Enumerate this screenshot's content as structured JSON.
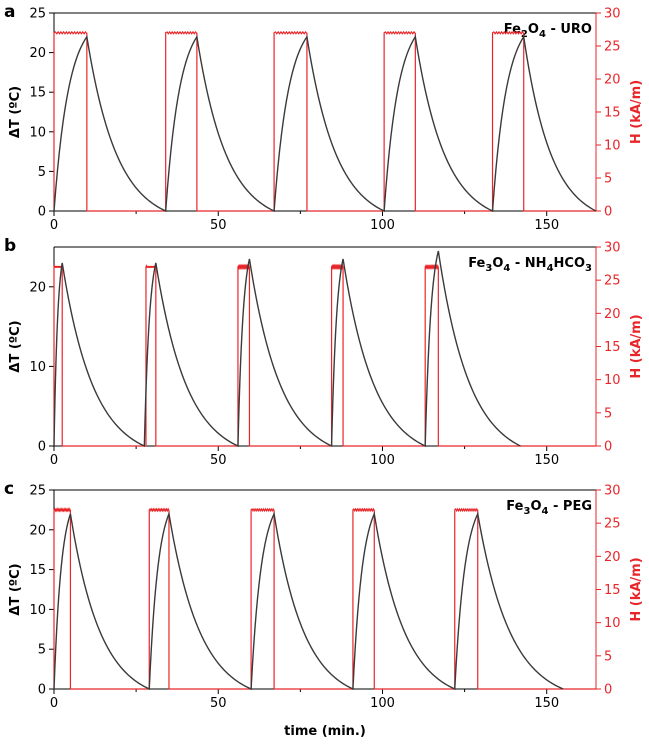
{
  "chart_data": [
    {
      "panel_label": "a",
      "type": "line",
      "annotation": {
        "pre": "Fe",
        "sub1": "2",
        "mid": "O",
        "sub2": "4",
        "post": " - URO"
      },
      "xlabel": "",
      "ylabel_left": "ΔT (ºC)",
      "ylabel_right": "H (kA/m)",
      "xlim": [
        0,
        165
      ],
      "ylim_left": [
        0,
        25
      ],
      "ylim_right": [
        0,
        30
      ],
      "x_ticks": [
        0,
        50,
        100,
        150
      ],
      "y_ticks_left": [
        0,
        5,
        10,
        15,
        20,
        25
      ],
      "y_ticks_right": [
        0,
        5,
        10,
        15,
        20,
        25,
        30
      ],
      "field_on_value": 27,
      "series": [
        {
          "name": "ΔT",
          "axis": "left",
          "cycles": [
            {
              "on": 0,
              "peak_t": 10,
              "peak": 22,
              "end": 34
            },
            {
              "on": 34,
              "peak_t": 43.5,
              "peak": 22,
              "end": 67
            },
            {
              "on": 67,
              "peak_t": 77,
              "peak": 22,
              "end": 100.5
            },
            {
              "on": 100.5,
              "peak_t": 110,
              "peak": 22,
              "end": 133.5
            },
            {
              "on": 133.5,
              "peak_t": 143,
              "peak": 22,
              "end": 165
            }
          ]
        },
        {
          "name": "H",
          "axis": "right",
          "pulses": [
            [
              0,
              10
            ],
            [
              34,
              43.5
            ],
            [
              67,
              77
            ],
            [
              100.5,
              110
            ],
            [
              133.5,
              143
            ]
          ]
        }
      ]
    },
    {
      "panel_label": "b",
      "type": "line",
      "annotation": {
        "pre": "Fe",
        "sub1": "3",
        "mid": "O",
        "sub2": "4",
        "post": " - NH",
        "sub3": "4",
        "post2": "HCO",
        "sub4": "3"
      },
      "xlabel": "",
      "ylabel_left": "ΔT (ºC)",
      "ylabel_right": "H (kA/m)",
      "xlim": [
        0,
        165
      ],
      "ylim_left": [
        0,
        25
      ],
      "ylim_right": [
        0,
        30
      ],
      "x_ticks": [
        0,
        50,
        100,
        150
      ],
      "y_ticks_left": [
        0,
        10,
        20
      ],
      "y_ticks_right": [
        0,
        5,
        10,
        15,
        20,
        25,
        30
      ],
      "field_on_value": 27,
      "series": [
        {
          "name": "ΔT",
          "axis": "left",
          "cycles": [
            {
              "on": 0,
              "peak_t": 2.5,
              "peak": 23,
              "end": 27.5
            },
            {
              "on": 27.5,
              "peak_t": 31,
              "peak": 23,
              "end": 56
            },
            {
              "on": 56,
              "peak_t": 59.5,
              "peak": 23.5,
              "end": 84.5
            },
            {
              "on": 84.5,
              "peak_t": 88,
              "peak": 23.5,
              "end": 113
            },
            {
              "on": 113,
              "peak_t": 117,
              "peak": 24.5,
              "end": 142
            }
          ]
        },
        {
          "name": "H",
          "axis": "right",
          "pulses": [
            [
              0,
              2.5
            ],
            [
              28,
              31
            ],
            [
              56,
              59.5
            ],
            [
              84.5,
              88
            ],
            [
              113,
              117
            ]
          ]
        }
      ]
    },
    {
      "panel_label": "c",
      "type": "line",
      "annotation": {
        "pre": "Fe",
        "sub1": "3",
        "mid": "O",
        "sub2": "4",
        "post": " - PEG"
      },
      "xlabel": "time (min.)",
      "ylabel_left": "ΔT (ºC)",
      "ylabel_right": "H (kA/m)",
      "xlim": [
        0,
        165
      ],
      "ylim_left": [
        0,
        25
      ],
      "ylim_right": [
        0,
        30
      ],
      "x_ticks": [
        0,
        50,
        100,
        150
      ],
      "y_ticks_left": [
        0,
        5,
        10,
        15,
        20,
        25
      ],
      "y_ticks_right": [
        0,
        5,
        10,
        15,
        20,
        25,
        30
      ],
      "field_on_value": 27,
      "series": [
        {
          "name": "ΔT",
          "axis": "left",
          "cycles": [
            {
              "on": 0,
              "peak_t": 5,
              "peak": 22,
              "end": 29
            },
            {
              "on": 29,
              "peak_t": 35,
              "peak": 22,
              "end": 60
            },
            {
              "on": 60,
              "peak_t": 67,
              "peak": 22,
              "end": 91
            },
            {
              "on": 91,
              "peak_t": 97.5,
              "peak": 22,
              "end": 122
            },
            {
              "on": 122,
              "peak_t": 129,
              "peak": 22,
              "end": 155
            }
          ]
        },
        {
          "name": "H",
          "axis": "right",
          "pulses": [
            [
              0,
              5
            ],
            [
              29,
              35
            ],
            [
              60,
              67
            ],
            [
              91,
              97.5
            ],
            [
              122,
              129
            ]
          ]
        }
      ]
    }
  ],
  "colors": {
    "temperature": "#3a3a3a",
    "field": "#e8262a",
    "axis_left": "#000000",
    "axis_right": "#e8262a"
  }
}
